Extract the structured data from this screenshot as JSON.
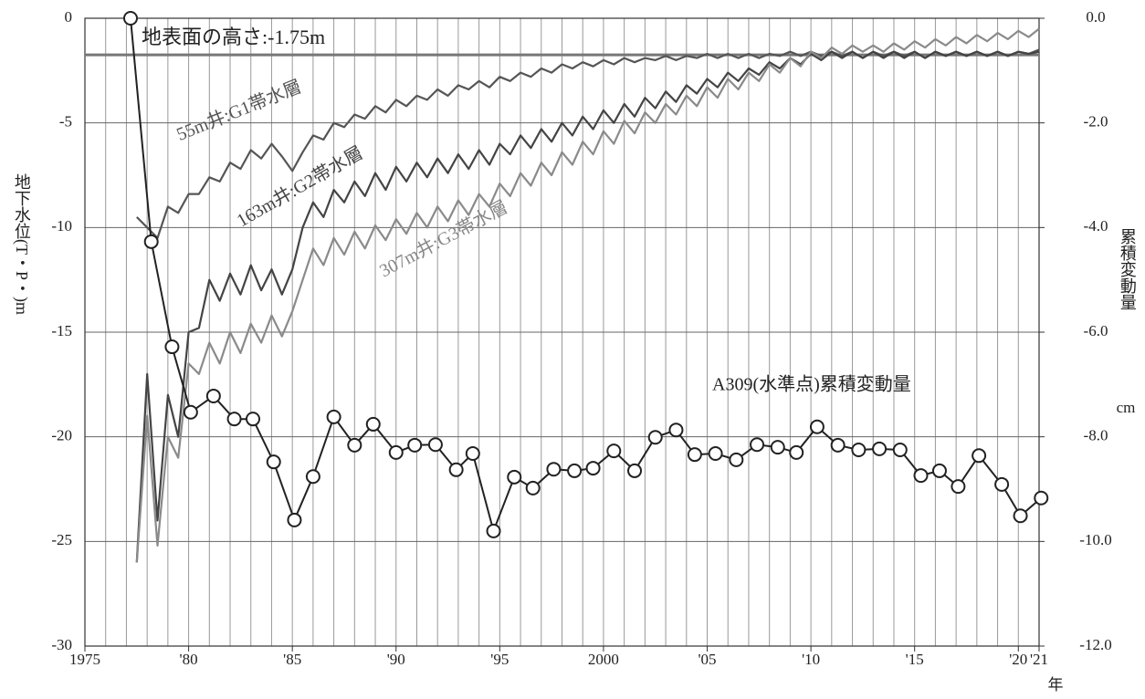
{
  "chart_data": {
    "type": "line",
    "y_label": "地下水位(T・P・)m",
    "y2_label": "累積変動量",
    "y2_unit": "cm",
    "x_unit": "年",
    "ground_level": -1.75,
    "ground_level_label": "地表面の高さ:-1.75m",
    "xlim": [
      1975,
      2021
    ],
    "xticks": [
      1975,
      {
        "value": 1980,
        "label": "'80"
      },
      {
        "value": 1985,
        "label": "'85"
      },
      {
        "value": 1990,
        "label": "'90"
      },
      {
        "value": 1995,
        "label": "'95"
      },
      2000,
      {
        "value": 2005,
        "label": "'05"
      },
      {
        "value": 2010,
        "label": "'10"
      },
      {
        "value": 2015,
        "label": "'15"
      },
      {
        "value": 2020,
        "label": "'20"
      },
      {
        "value": 2021,
        "label": "'21"
      }
    ],
    "ylim": [
      -30,
      0
    ],
    "yticks": [
      0,
      -5,
      -10,
      -15,
      -20,
      -25,
      -30
    ],
    "y2lim": [
      -12,
      0
    ],
    "y2ticks": [
      {
        "value": 0,
        "label": "0.0"
      },
      {
        "value": -2,
        "label": "-2.0"
      },
      {
        "value": -4,
        "label": "-4.0"
      },
      {
        "value": -6,
        "label": "-6.0"
      },
      {
        "value": -8,
        "label": "-8.0"
      },
      {
        "value": -10,
        "label": "-10.0"
      },
      {
        "value": -12,
        "label": "-12.0"
      }
    ],
    "grid": true,
    "x": [
      1977.5,
      1978,
      1978.5,
      1979,
      1979.5,
      1980,
      1980.5,
      1981,
      1981.5,
      1982,
      1982.5,
      1983,
      1983.5,
      1984,
      1984.5,
      1985,
      1985.5,
      1986,
      1986.5,
      1987,
      1987.5,
      1988,
      1988.5,
      1989,
      1989.5,
      1990,
      1990.5,
      1991,
      1991.5,
      1992,
      1992.5,
      1993,
      1993.5,
      1994,
      1994.5,
      1995,
      1995.5,
      1996,
      1996.5,
      1997,
      1997.5,
      1998,
      1998.5,
      1999,
      1999.5,
      2000,
      2000.5,
      2001,
      2001.5,
      2002,
      2002.5,
      2003,
      2003.5,
      2004,
      2004.5,
      2005,
      2005.5,
      2006,
      2006.5,
      2007,
      2007.5,
      2008,
      2008.5,
      2009,
      2009.5,
      2010,
      2010.5,
      2011,
      2011.5,
      2012,
      2012.5,
      2013,
      2013.5,
      2014,
      2014.5,
      2015,
      2015.5,
      2016,
      2016.5,
      2017,
      2017.5,
      2018,
      2018.5,
      2019,
      2019.5,
      2020,
      2020.5,
      2021
    ],
    "series": [
      {
        "name": "55m井:G1帯水層",
        "color": "#555555",
        "values": [
          -9.5,
          -10.0,
          -10.5,
          -9.0,
          -9.3,
          -8.4,
          -8.4,
          -7.6,
          -7.8,
          -6.9,
          -7.2,
          -6.3,
          -6.7,
          -6.0,
          -6.6,
          -7.3,
          -6.4,
          -5.6,
          -5.8,
          -5.0,
          -5.2,
          -4.6,
          -4.8,
          -4.2,
          -4.5,
          -3.9,
          -4.2,
          -3.7,
          -3.9,
          -3.4,
          -3.7,
          -3.2,
          -3.4,
          -3.0,
          -3.3,
          -2.8,
          -3.0,
          -2.6,
          -2.8,
          -2.4,
          -2.6,
          -2.2,
          -2.4,
          -2.1,
          -2.3,
          -2.0,
          -2.2,
          -1.9,
          -2.1,
          -1.9,
          -2.0,
          -1.8,
          -2.0,
          -1.8,
          -1.9,
          -1.7,
          -1.9,
          -1.7,
          -1.9,
          -1.7,
          -1.9,
          -1.7,
          -1.8,
          -1.6,
          -1.8,
          -1.6,
          -1.8,
          -1.6,
          -1.8,
          -1.6,
          -1.9,
          -1.6,
          -1.8,
          -1.6,
          -1.8,
          -1.6,
          -1.9,
          -1.6,
          -1.8,
          -1.6,
          -1.8,
          -1.6,
          -1.8,
          -1.6,
          -1.8,
          -1.6,
          -1.7,
          -1.5
        ]
      },
      {
        "name": "163m井:G2帯水層",
        "color": "#444444",
        "values": [
          -26.0,
          -17.0,
          -24.0,
          -18.0,
          -20.0,
          -15.0,
          -14.8,
          -12.5,
          -13.5,
          -12.2,
          -13.2,
          -11.8,
          -13.0,
          -12.0,
          -13.2,
          -12.0,
          -10.0,
          -8.8,
          -9.5,
          -8.2,
          -8.8,
          -7.8,
          -8.5,
          -7.4,
          -8.2,
          -7.1,
          -7.8,
          -6.9,
          -7.6,
          -6.7,
          -7.4,
          -6.5,
          -7.2,
          -6.3,
          -7.0,
          -6.0,
          -6.5,
          -5.6,
          -6.2,
          -5.3,
          -5.9,
          -5.0,
          -5.6,
          -4.7,
          -5.3,
          -4.4,
          -5.0,
          -4.1,
          -4.7,
          -3.8,
          -4.3,
          -3.5,
          -4.0,
          -3.2,
          -3.6,
          -2.9,
          -3.3,
          -2.6,
          -3.0,
          -2.4,
          -2.7,
          -2.1,
          -2.4,
          -1.9,
          -2.2,
          -1.7,
          -2.0,
          -1.6,
          -1.9,
          -1.6,
          -1.9,
          -1.6,
          -1.9,
          -1.6,
          -1.9,
          -1.6,
          -1.9,
          -1.6,
          -1.8,
          -1.6,
          -1.8,
          -1.6,
          -1.8,
          -1.6,
          -1.8,
          -1.6,
          -1.7,
          -1.6
        ]
      },
      {
        "name": "307m井:G3帯水層",
        "color": "#8a8a8a",
        "values": [
          -26.0,
          -19.0,
          -25.2,
          -20.0,
          -21.0,
          -16.5,
          -17.0,
          -15.5,
          -16.5,
          -15.0,
          -16.0,
          -14.6,
          -15.5,
          -14.2,
          -15.2,
          -14.0,
          -12.5,
          -11.0,
          -11.8,
          -10.5,
          -11.3,
          -10.2,
          -11.0,
          -9.9,
          -10.6,
          -9.6,
          -10.3,
          -9.3,
          -10.0,
          -9.0,
          -9.7,
          -8.7,
          -9.4,
          -8.4,
          -9.0,
          -7.9,
          -8.5,
          -7.4,
          -8.0,
          -6.9,
          -7.5,
          -6.4,
          -7.0,
          -5.9,
          -6.5,
          -5.4,
          -6.0,
          -4.9,
          -5.5,
          -4.5,
          -5.0,
          -4.1,
          -4.6,
          -3.7,
          -4.2,
          -3.3,
          -3.8,
          -2.9,
          -3.4,
          -2.6,
          -3.0,
          -2.2,
          -2.6,
          -1.9,
          -2.3,
          -1.6,
          -1.9,
          -1.4,
          -1.7,
          -1.3,
          -1.6,
          -1.3,
          -1.6,
          -1.2,
          -1.5,
          -1.1,
          -1.4,
          -1.0,
          -1.3,
          -0.9,
          -1.2,
          -0.8,
          -1.1,
          -0.7,
          -1.0,
          -0.6,
          -0.9,
          -0.5
        ]
      },
      {
        "name": "A309(水準点)累積変動量",
        "color": "#222222",
        "axis": "y2",
        "markers": true,
        "x": [
          1977.2,
          1978.2,
          1979.2,
          1980.1,
          1981.2,
          1982.2,
          1983.1,
          1984.1,
          1985.1,
          1986.0,
          1987.0,
          1988.0,
          1988.9,
          1990.0,
          1990.9,
          1991.9,
          1992.9,
          1993.7,
          1994.7,
          1995.7,
          1996.6,
          1997.6,
          1998.6,
          1999.5,
          2000.5,
          2001.5,
          2002.5,
          2003.5,
          2004.4,
          2005.4,
          2006.4,
          2007.4,
          2008.4,
          2009.3,
          2010.3,
          2011.3,
          2012.3,
          2013.3,
          2014.3,
          2015.3,
          2016.2,
          2017.1,
          2018.1,
          2019.2,
          2020.1,
          2021.1
        ],
        "values": [
          0.0,
          -4.27,
          -6.28,
          -7.53,
          -7.22,
          -7.66,
          -7.66,
          -8.48,
          -9.59,
          -8.76,
          -7.62,
          -8.16,
          -7.76,
          -8.3,
          -8.16,
          -8.15,
          -8.63,
          -8.32,
          -9.8,
          -8.77,
          -8.98,
          -8.62,
          -8.65,
          -8.6,
          -8.27,
          -8.65,
          -8.01,
          -7.87,
          -8.34,
          -8.32,
          -8.44,
          -8.15,
          -8.2,
          -8.3,
          -7.81,
          -8.16,
          -8.25,
          -8.23,
          -8.25,
          -8.74,
          -8.65,
          -8.95,
          -8.36,
          -8.91,
          -9.51,
          -9.17
        ]
      }
    ]
  }
}
